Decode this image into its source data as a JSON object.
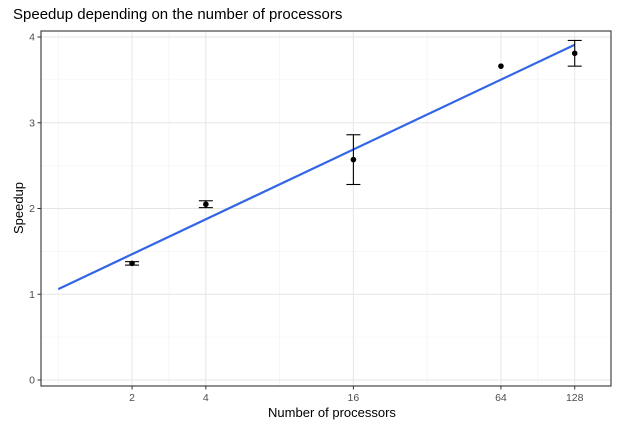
{
  "chart_data": {
    "type": "scatter",
    "title": "Speedup depending on the number of processors",
    "xlabel": "Number of processors",
    "ylabel": "Speedup",
    "x_scale": "log2",
    "x_ticks": [
      2,
      4,
      16,
      64,
      128
    ],
    "x_tick_labels": [
      "2",
      "4",
      "16",
      "64",
      "128"
    ],
    "y_ticks": [
      0,
      1,
      2,
      3,
      4
    ],
    "y_tick_labels": [
      "0",
      "1",
      "2",
      "3",
      "4"
    ],
    "xlim": [
      0.85,
      180
    ],
    "ylim": [
      -0.07,
      4.07
    ],
    "grid": true,
    "legend": "none",
    "series": [
      {
        "kind": "points_with_errorbars",
        "color": "#000000",
        "points": [
          {
            "x": 2,
            "y": 1.36,
            "ymin": 1.34,
            "ymax": 1.38
          },
          {
            "x": 4,
            "y": 2.05,
            "ymin": 2.01,
            "ymax": 2.09
          },
          {
            "x": 16,
            "y": 2.57,
            "ymin": 2.28,
            "ymax": 2.86
          },
          {
            "x": 64,
            "y": 3.66
          },
          {
            "x": 128,
            "y": 3.81,
            "ymin": 3.66,
            "ymax": 3.96
          }
        ]
      },
      {
        "kind": "fit_line",
        "color": "#3366e6",
        "points": [
          {
            "x": 1,
            "y": 1.06
          },
          {
            "x": 128,
            "y": 3.91
          }
        ]
      }
    ]
  }
}
